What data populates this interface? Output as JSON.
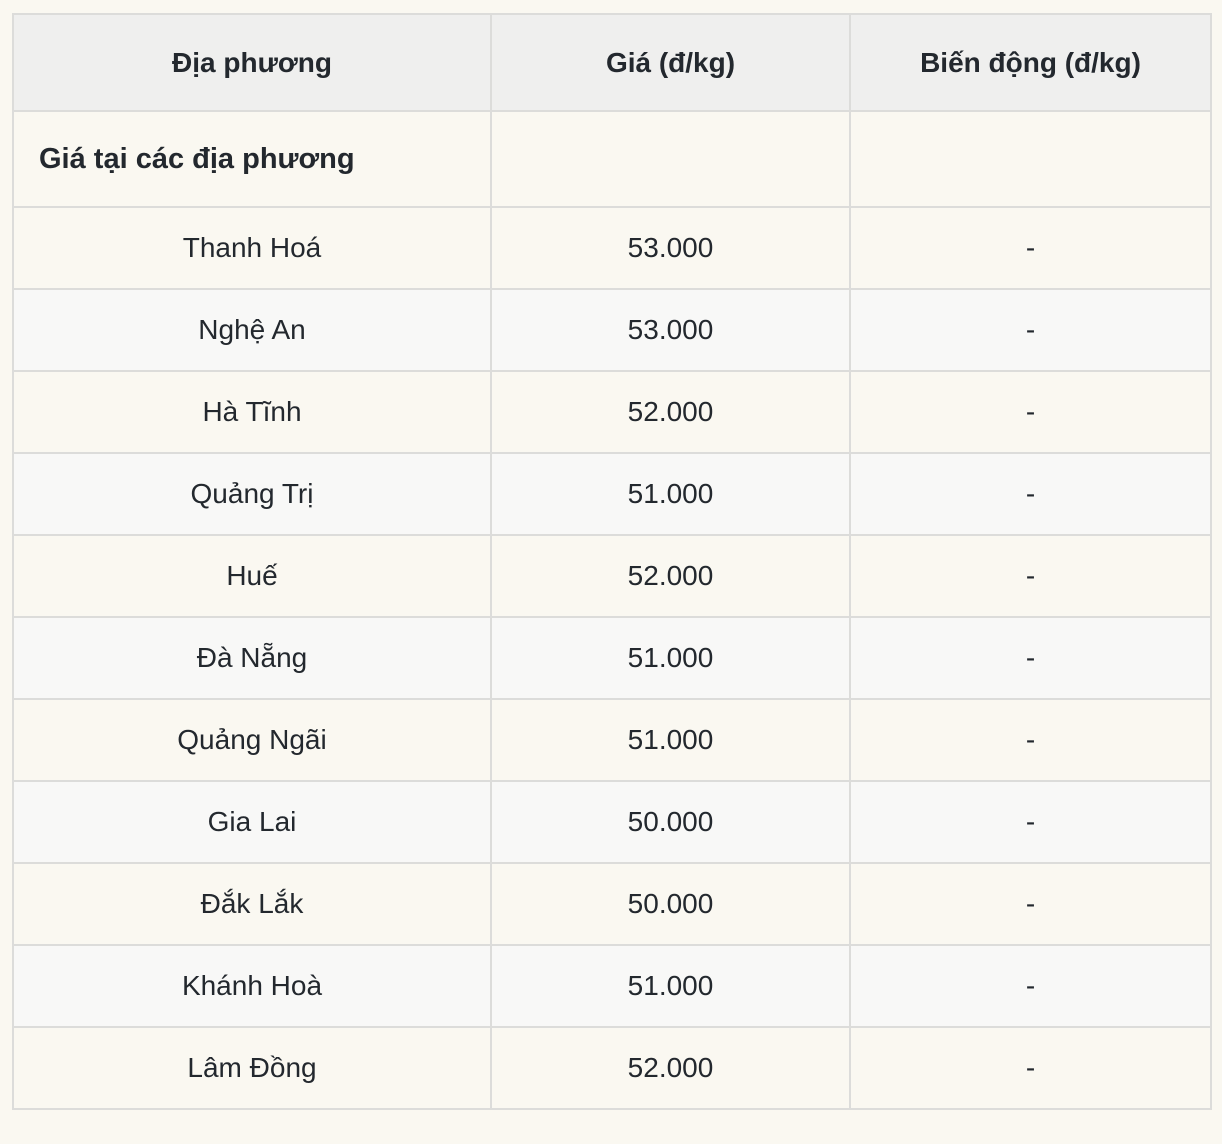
{
  "table": {
    "columns": [
      {
        "label": "Địa phương"
      },
      {
        "label": "Giá (đ/kg)"
      },
      {
        "label": "Biến động (đ/kg)"
      }
    ],
    "section_label": "Giá tại các địa phương",
    "rows": [
      {
        "locality": "Thanh Hoá",
        "price": "53.000",
        "change": "-"
      },
      {
        "locality": "Nghệ An",
        "price": "53.000",
        "change": "-"
      },
      {
        "locality": "Hà Tĩnh",
        "price": "52.000",
        "change": "-"
      },
      {
        "locality": "Quảng Trị",
        "price": "51.000",
        "change": "-"
      },
      {
        "locality": "Huế",
        "price": "52.000",
        "change": "-"
      },
      {
        "locality": "Đà Nẵng",
        "price": "51.000",
        "change": "-"
      },
      {
        "locality": "Quảng Ngãi",
        "price": "51.000",
        "change": "-"
      },
      {
        "locality": "Gia Lai",
        "price": "50.000",
        "change": "-"
      },
      {
        "locality": "Đắk Lắk",
        "price": "50.000",
        "change": "-"
      },
      {
        "locality": "Khánh Hoà",
        "price": "51.000",
        "change": "-"
      },
      {
        "locality": "Lâm Đồng",
        "price": "52.000",
        "change": "-"
      }
    ],
    "colors": {
      "page_bg": "#faf8f1",
      "header_bg": "#efefee",
      "row_cream": "#faf8f1",
      "row_gray": "#f8f8f7",
      "border": "#dcdcda",
      "text": "#23282e"
    }
  },
  "chart_data": {
    "type": "table",
    "title": "Giá tại các địa phương",
    "columns": [
      "Địa phương",
      "Giá (đ/kg)",
      "Biến động (đ/kg)"
    ],
    "categories": [
      "Thanh Hoá",
      "Nghệ An",
      "Hà Tĩnh",
      "Quảng Trị",
      "Huế",
      "Đà Nẵng",
      "Quảng Ngãi",
      "Gia Lai",
      "Đắk Lắk",
      "Khánh Hoà",
      "Lâm Đồng"
    ],
    "values": [
      53000,
      53000,
      52000,
      51000,
      52000,
      51000,
      51000,
      50000,
      50000,
      51000,
      52000
    ],
    "change_values": [
      "-",
      "-",
      "-",
      "-",
      "-",
      "-",
      "-",
      "-",
      "-",
      "-",
      "-"
    ],
    "ylabel": "Giá (đ/kg)"
  }
}
